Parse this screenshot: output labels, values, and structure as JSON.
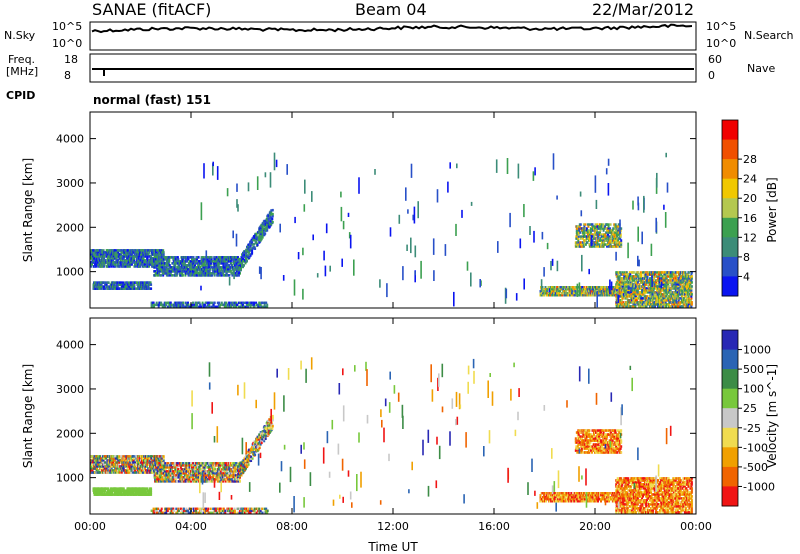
{
  "header": {
    "station": "SANAE (fitACF)",
    "beam": "Beam 04",
    "date": "22/Mar/2012"
  },
  "top_panels": {
    "nsky_label": "N.Sky",
    "nsearch_label": "N.Search",
    "nsky_ticks": [
      "10^5",
      "10^0"
    ],
    "nsearch_ticks": [
      "10^5",
      "10^0"
    ],
    "freq_label": "Freq.",
    "freq_unit": "[MHz]",
    "freq_ticks": [
      "18",
      "8"
    ],
    "nave_label": "Nave",
    "nave_ticks": [
      "60",
      "0"
    ],
    "cpid_label": "CPID",
    "cpid_value": "normal (fast) 151"
  },
  "colors": {
    "power": [
      "#0a14f0",
      "#2850c8",
      "#3c8c78",
      "#3ca050",
      "#b4c850",
      "#f0c800",
      "#f08c00",
      "#f05000",
      "#f00000"
    ],
    "velocity": [
      "#2828b4",
      "#2a64b4",
      "#3c8c46",
      "#78c83c",
      "#c8c8c8",
      "#f0dc50",
      "#f0a000",
      "#f06400",
      "#f01414"
    ]
  },
  "chart_data": [
    {
      "type": "heatmap",
      "title": "",
      "xlabel": "",
      "ylabel": "Slant Range [km]",
      "x_ticks": [
        "00:00",
        "04:00",
        "08:00",
        "12:00",
        "16:00",
        "20:00",
        "00:00"
      ],
      "y_ticks": [
        1000,
        2000,
        3000,
        4000
      ],
      "ylim": [
        180,
        4600
      ],
      "xlim_hours": [
        0,
        24
      ],
      "colorbar": {
        "label": "Power [dB]",
        "ticks": [
          4,
          8,
          12,
          16,
          20,
          24,
          28
        ],
        "range": [
          0,
          32
        ]
      }
    },
    {
      "type": "heatmap",
      "title": "",
      "xlabel": "Time UT",
      "ylabel": "Slant Range [km]",
      "x_ticks": [
        "00:00",
        "04:00",
        "08:00",
        "12:00",
        "16:00",
        "20:00",
        "00:00"
      ],
      "y_ticks": [
        1000,
        2000,
        3000,
        4000
      ],
      "ylim": [
        180,
        4600
      ],
      "xlim_hours": [
        0,
        24
      ],
      "colorbar": {
        "label": "Velocity [m s^-1]",
        "ticks": [
          "1000",
          "500",
          "100",
          "25",
          "-25",
          "-100",
          "-500",
          "-1000"
        ]
      }
    }
  ]
}
